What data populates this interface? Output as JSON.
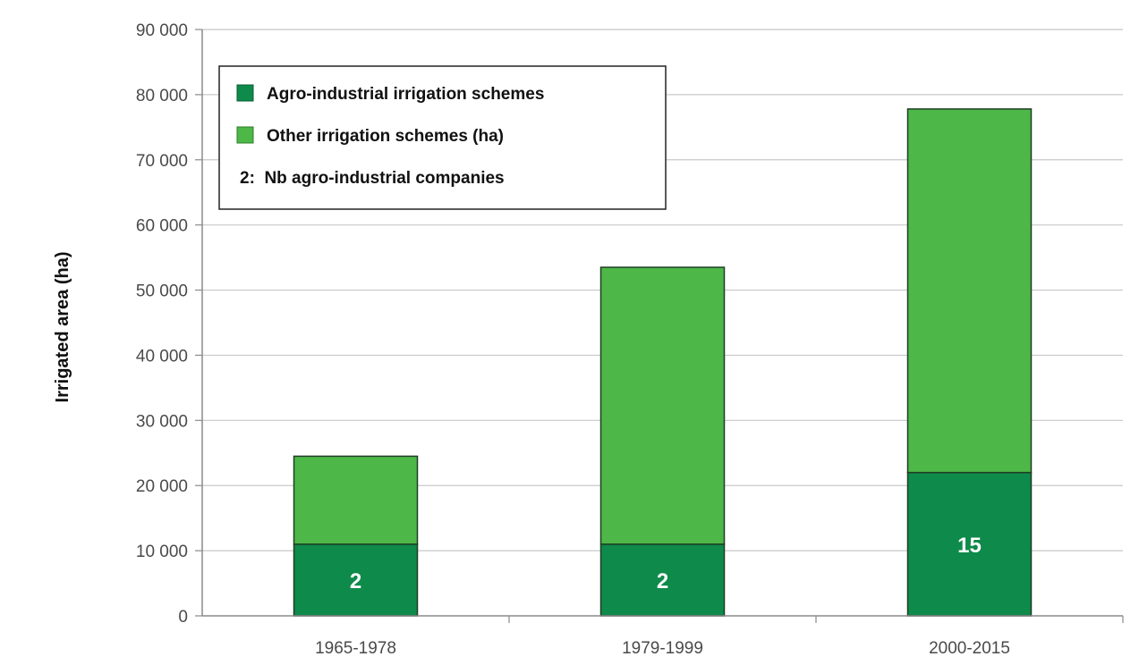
{
  "chart_data": {
    "type": "bar",
    "stacked": true,
    "categories": [
      "1965-1978",
      "1979-1999",
      "2000-2015"
    ],
    "series": [
      {
        "name": "Agro-industrial irrigation schemes",
        "values": [
          11000,
          11000,
          22000
        ],
        "color": "#0e8a4a"
      },
      {
        "name": "Other irrigation schemes (ha)",
        "values": [
          13500,
          42500,
          55800
        ],
        "color": "#4db848"
      }
    ],
    "bar_labels": [
      "2",
      "2",
      "15"
    ],
    "legend_note": "2:  Nb agro-industrial companies",
    "ylabel": "Irrigated area (ha)",
    "xlabel": "",
    "ylim": [
      0,
      90000
    ],
    "yticks": [
      {
        "value": 0,
        "label": "0"
      },
      {
        "value": 10000,
        "label": "10 000"
      },
      {
        "value": 20000,
        "label": "20 000"
      },
      {
        "value": 30000,
        "label": "30 000"
      },
      {
        "value": 40000,
        "label": "40 000"
      },
      {
        "value": 50000,
        "label": "50 000"
      },
      {
        "value": 60000,
        "label": "60 000"
      },
      {
        "value": 70000,
        "label": "70 000"
      },
      {
        "value": 80000,
        "label": "80 000"
      },
      {
        "value": 90000,
        "label": "90 000"
      }
    ],
    "grid": true,
    "legend_position": "top-left",
    "grid_color": "#c8c8c8",
    "axis_color": "#8a8a8a"
  }
}
